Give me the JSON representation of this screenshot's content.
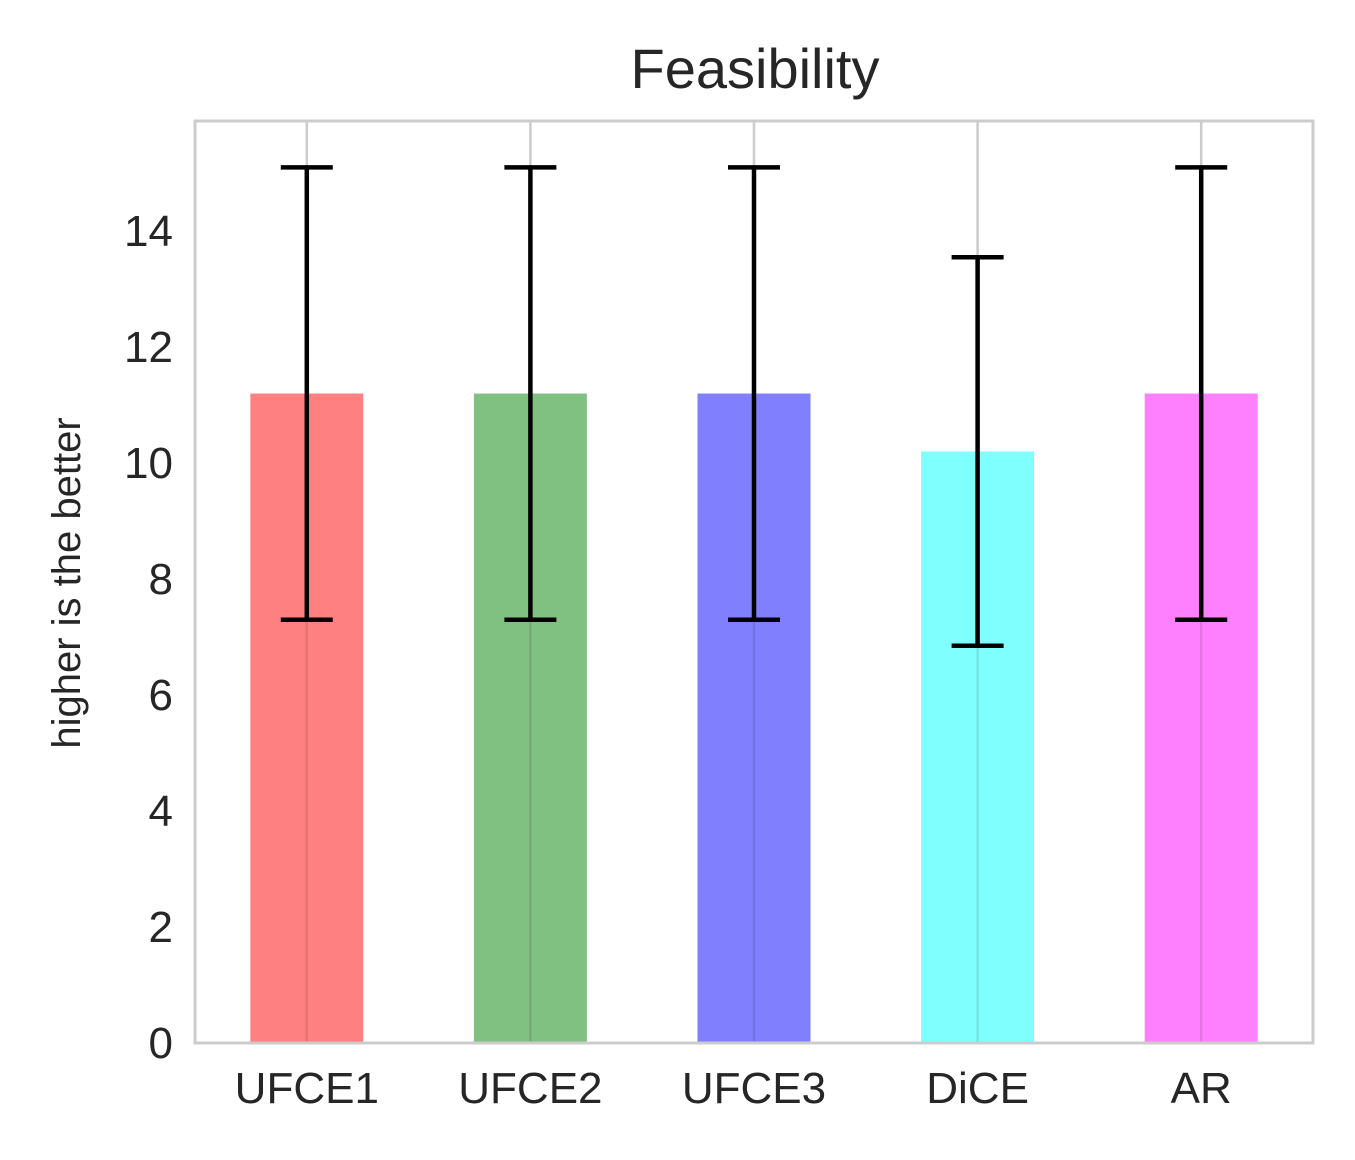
{
  "chart_data": {
    "type": "bar",
    "title": "Feasibility",
    "xlabel": "",
    "ylabel": "higher is the better",
    "categories": [
      "UFCE1",
      "UFCE2",
      "UFCE3",
      "DiCE",
      "AR"
    ],
    "values": [
      11.2,
      11.2,
      11.2,
      10.2,
      11.2
    ],
    "error_low": [
      7.3,
      7.3,
      7.3,
      6.85,
      7.3
    ],
    "error_high": [
      15.1,
      15.1,
      15.1,
      13.55,
      15.1
    ],
    "bar_colors": [
      "#ff8080",
      "#80c080",
      "#8080ff",
      "#80ffff",
      "#ff80ff"
    ],
    "error_color": "#000000",
    "ylim": [
      0,
      15.9
    ],
    "yticks": [
      0,
      2,
      4,
      6,
      8,
      10,
      12,
      14
    ],
    "grid": true,
    "grid_axis": "x",
    "grid_color": "#cccccc",
    "spine_color": "#cccccc",
    "legend": "none"
  }
}
